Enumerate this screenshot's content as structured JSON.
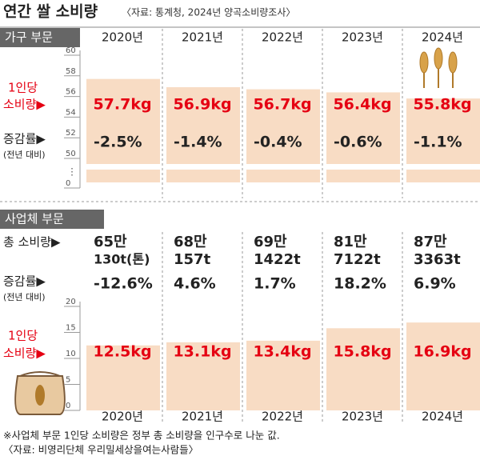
{
  "title": "연간 쌀 소비량",
  "subtitle": "〈자료: 통계청, 2024년 양곡소비량조사〉",
  "chart_data": [
    {
      "type": "bar",
      "section": "가구 부문",
      "categories": [
        "2020년",
        "2021년",
        "2022년",
        "2023년",
        "2024년"
      ],
      "values": [
        57.7,
        56.9,
        56.7,
        56.4,
        55.8
      ],
      "value_labels": [
        "57.7kg",
        "56.9kg",
        "56.7kg",
        "56.4kg",
        "55.8kg"
      ],
      "value_label_title": [
        "1인당",
        "소비량▶"
      ],
      "change_title": "증감률▶",
      "change_note": "(전년 대비)",
      "changes": [
        -2.5,
        -1.4,
        -0.4,
        -0.6,
        -1.1
      ],
      "change_labels": [
        "-2.5%",
        "-1.4%",
        "-0.4%",
        "-0.6%",
        "-1.1%"
      ],
      "color": "#f8dcc4",
      "label_color": "#e50012",
      "ylim": [
        50,
        60
      ],
      "yticks": [
        0,
        50,
        52,
        54,
        56,
        58,
        60
      ],
      "axis_break": "⋮"
    },
    {
      "type": "bar",
      "section": "사업체 부문",
      "categories": [
        "2020년",
        "2021년",
        "2022년",
        "2023년",
        "2024년"
      ],
      "total_title": "총 소비량▶",
      "totals": [
        [
          "65만",
          "130t(톤)"
        ],
        [
          "68만",
          "157t"
        ],
        [
          "69만",
          "1422t"
        ],
        [
          "81만",
          "7122t"
        ],
        [
          "87만",
          "3363t"
        ]
      ],
      "change_title": "증감률▶",
      "change_note": "(전년 대비)",
      "changes": [
        -12.6,
        4.6,
        1.7,
        18.2,
        6.9
      ],
      "change_labels": [
        "-12.6%",
        "4.6%",
        "1.7%",
        "18.2%",
        "6.9%"
      ],
      "values": [
        12.5,
        13.1,
        13.4,
        15.8,
        16.9
      ],
      "value_labels": [
        "12.5kg",
        "13.1kg",
        "13.4kg",
        "15.8kg",
        "16.9kg"
      ],
      "value_label_title": [
        "1인당",
        "소비량▶"
      ],
      "color": "#f8dcc4",
      "label_color": "#e50012",
      "ylim": [
        0,
        20
      ],
      "yticks": [
        0,
        5,
        10,
        15,
        20
      ]
    }
  ],
  "notes": [
    "※사업체 부문 1인당 소비량은 정부 총 소비량을 인구수로 나눈 값.",
    "〈자료: 비영리단체 우리밀세상을여는사람들〉"
  ]
}
